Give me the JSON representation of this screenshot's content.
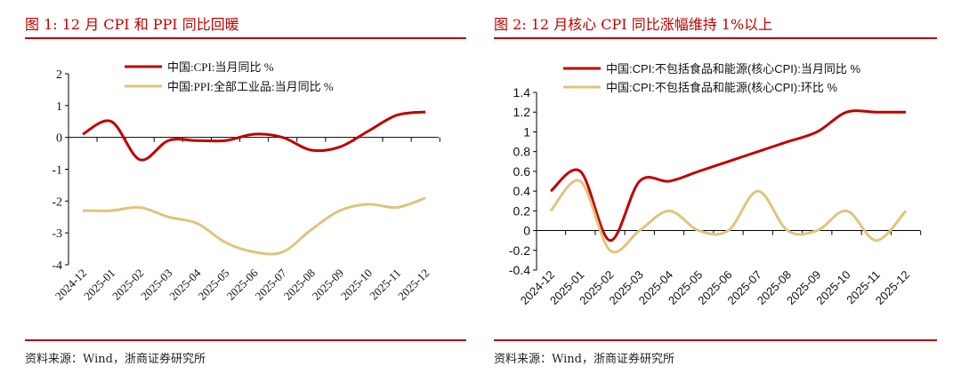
{
  "panels": [
    {
      "title": "图 1:   12 月 CPI 和 PPI 同比回暖",
      "source": "资料来源：Wind，浙商证券研究所"
    },
    {
      "title": "图 2:   12 月核心 CPI 同比涨幅维持 1%以上",
      "source": "资料来源：Wind，浙商证券研究所"
    }
  ],
  "chart_data": [
    {
      "type": "line",
      "categories": [
        "2024-12",
        "2025-01",
        "2025-02",
        "2025-03",
        "2025-04",
        "2025-05",
        "2025-06",
        "2025-07",
        "2025-08",
        "2025-09",
        "2025-10",
        "2025-11",
        "2025-12"
      ],
      "ylim": [
        -4,
        2
      ],
      "yticks": [
        "2",
        "1",
        "0",
        "-1",
        "-2",
        "-3",
        "-4"
      ],
      "legend": "top",
      "grid": false,
      "series": [
        {
          "name": "中国:CPI:当月同比 %",
          "color": "#c00000",
          "values": [
            0.1,
            0.5,
            -0.7,
            -0.1,
            -0.1,
            -0.1,
            0.1,
            0.0,
            -0.4,
            -0.3,
            0.2,
            0.7,
            0.8
          ]
        },
        {
          "name": "中国:PPI:全部工业品:当月同比 %",
          "color": "#e0c47c",
          "values": [
            -2.3,
            -2.3,
            -2.2,
            -2.5,
            -2.7,
            -3.3,
            -3.6,
            -3.6,
            -2.9,
            -2.3,
            -2.1,
            -2.2,
            -1.9
          ]
        }
      ]
    },
    {
      "type": "line",
      "categories": [
        "2024-12",
        "2025-01",
        "2025-02",
        "2025-03",
        "2025-04",
        "2025-05",
        "2025-06",
        "2025-07",
        "2025-08",
        "2025-09",
        "2025-10",
        "2025-11",
        "2025-12"
      ],
      "ylim": [
        -0.4,
        1.4
      ],
      "yticks": [
        "1.4",
        "1.2",
        "1",
        "0.8",
        "0.6",
        "0.4",
        "0.2",
        "0",
        "-0.2",
        "-0.4"
      ],
      "legend": "top",
      "grid": false,
      "series": [
        {
          "name": "中国:CPI:不包括食品和能源(核心CPI):当月同比 %",
          "color": "#c00000",
          "values": [
            0.4,
            0.6,
            -0.1,
            0.5,
            0.5,
            0.6,
            0.7,
            0.8,
            0.9,
            1.0,
            1.2,
            1.2,
            1.2
          ]
        },
        {
          "name": "中国:CPI:不包括食品和能源(核心CPI):环比 %",
          "color": "#e0c47c",
          "values": [
            0.2,
            0.5,
            -0.2,
            0.0,
            0.2,
            0.0,
            0.0,
            0.4,
            0.0,
            0.0,
            0.2,
            -0.1,
            0.2
          ]
        }
      ]
    }
  ]
}
